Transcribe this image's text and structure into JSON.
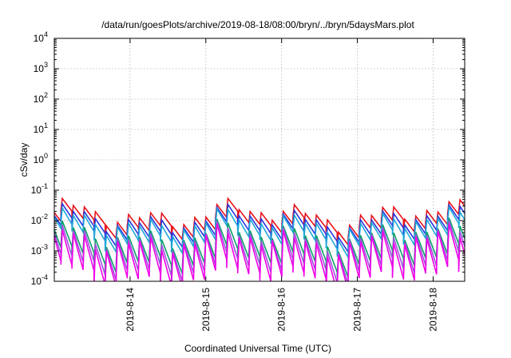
{
  "chart_data": {
    "type": "line",
    "title": "/data/run/goesPlots/archive/2019-08-18/08:00/bryn/../bryn/5daysMars.plot",
    "xlabel": "Coordinated Universal Time (UTC)",
    "ylabel": "cSv/day",
    "y_scale": "log",
    "ylim": [
      0.0001,
      10000
    ],
    "y_ticks": [
      {
        "base": "10",
        "exp": "-4"
      },
      {
        "base": "10",
        "exp": "-3"
      },
      {
        "base": "10",
        "exp": "-2"
      },
      {
        "base": "10",
        "exp": "-1"
      },
      {
        "base": "10",
        "exp": "0"
      },
      {
        "base": "10",
        "exp": "1"
      },
      {
        "base": "10",
        "exp": "2"
      },
      {
        "base": "10",
        "exp": "3"
      },
      {
        "base": "10",
        "exp": "4"
      }
    ],
    "x_range_days": [
      "2019-08-13T00:00",
      "2019-08-18T10:00"
    ],
    "x_ticks": [
      "2019-8-14",
      "2019-8-15",
      "2019-8-16",
      "2019-8-17",
      "2019-8-18"
    ],
    "grid": true,
    "series": [
      {
        "color": "#e8131a",
        "base_peak": 0.016,
        "trough_factor": 0.4
      },
      {
        "color": "#2a35e0",
        "base_peak": 0.011,
        "trough_factor": 0.35
      },
      {
        "color": "#1fa8d8",
        "base_peak": 0.0085,
        "trough_factor": 0.3
      },
      {
        "color": "#0ea06a",
        "base_peak": 0.0035,
        "trough_factor": 0.15
      },
      {
        "color": "#a050e0",
        "base_peak": 0.0028,
        "trough_factor": 0.1
      },
      {
        "color": "#f000e8",
        "base_peak": 0.0022,
        "trough_factor": 0.07
      }
    ],
    "cycle_hours": 3.5
  }
}
